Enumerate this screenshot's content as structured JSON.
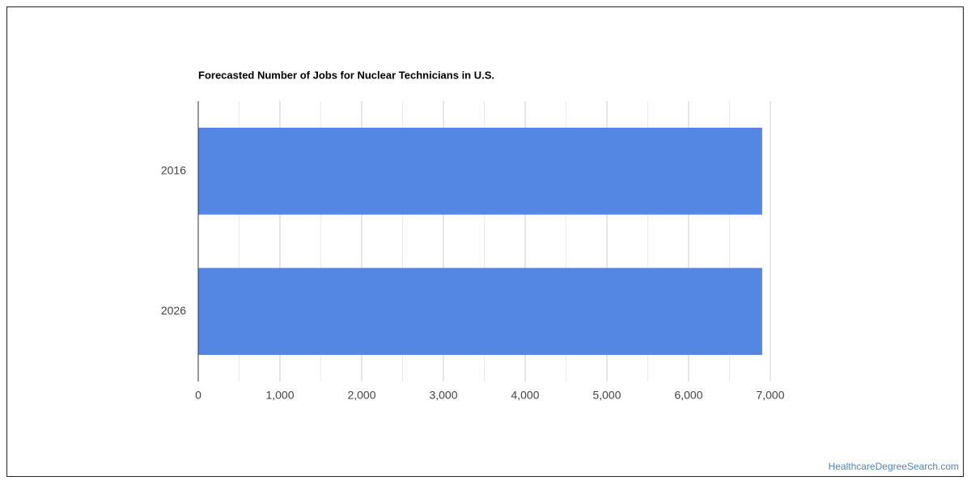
{
  "chart_data": {
    "type": "hbar",
    "title": "Forecasted Number of Jobs for Nuclear Technicians in U.S.",
    "categories": [
      "2016",
      "2026"
    ],
    "values": [
      6900,
      6900
    ],
    "color": "#5486e3",
    "xlim": [
      0,
      7000
    ],
    "xticks": [
      0,
      {
        "value": 1000,
        "label": "1,000"
      },
      {
        "value": 2000,
        "label": "2,000"
      },
      {
        "value": 3000,
        "label": "3,000"
      },
      {
        "value": 4000,
        "label": "4,000"
      },
      {
        "value": 5000,
        "label": "5,000"
      },
      {
        "value": 6000,
        "label": "6,000"
      },
      {
        "value": 7000,
        "label": "7,000"
      }
    ],
    "minor_xticks": [
      500,
      1500,
      2500,
      3500,
      4500,
      5500,
      6500
    ],
    "grid": true,
    "source": "HealthcareDegreeSearch.com"
  }
}
